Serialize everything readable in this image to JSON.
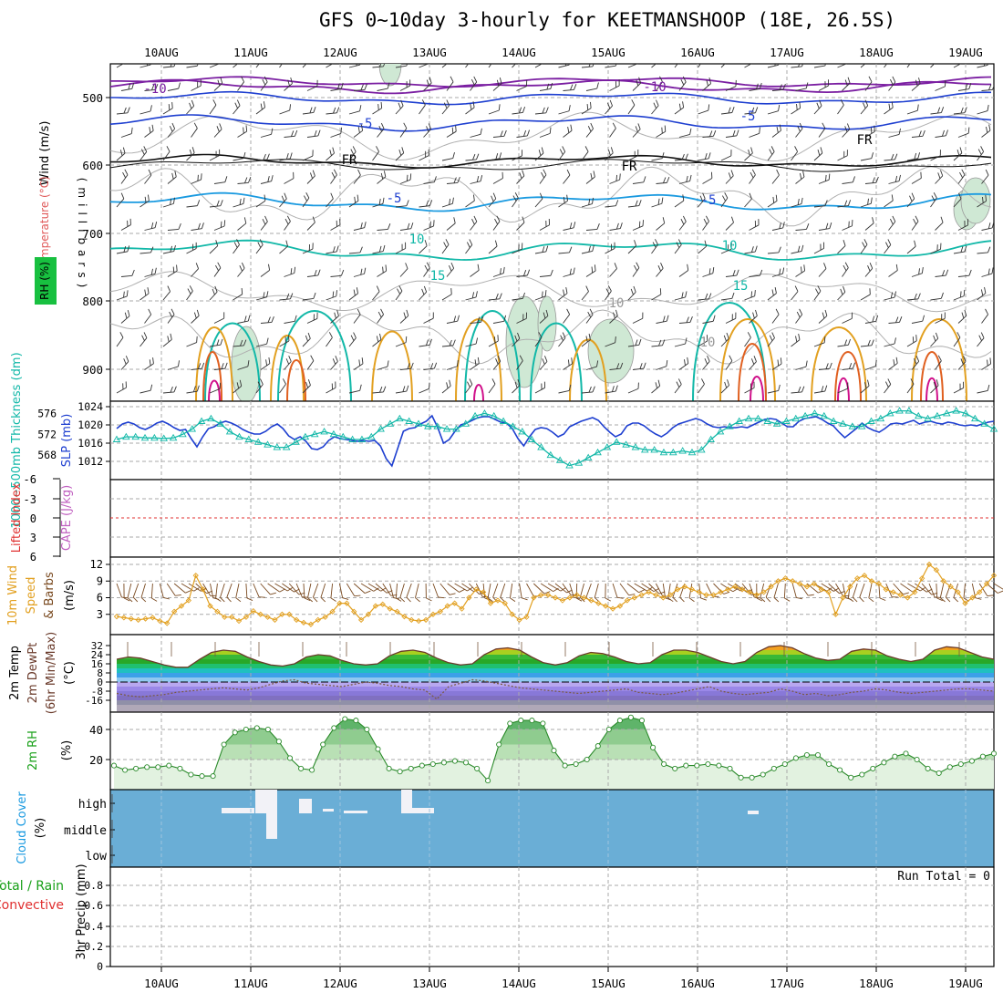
{
  "title": "GFS 0~10day 3-hourly for KEETMANSHOOP (18E, 26.5S)",
  "dates": [
    "10AUG",
    "11AUG",
    "12AUG",
    "13AUG",
    "14AUG",
    "15AUG",
    "16AUG",
    "17AUG",
    "18AUG",
    "19AUG"
  ],
  "colors": {
    "purple": "#7b1fa2",
    "blue": "#1e3fd0",
    "cyan": "#1a9ae0",
    "teal": "#12b8a8",
    "green": "#12b86a",
    "orange": "#e2a020",
    "magenta": "#d0108a",
    "ocean": "#6aaed6"
  },
  "panels": {
    "upper": {
      "ylabel_wind": "Wind (m/s)",
      "ylabel_temp": "Temperature (°C)",
      "ylabel_rh": "RH (%)",
      "ylabel_mb": "(millibars)",
      "ticks": [
        "500",
        "600",
        "700",
        "800",
        "900"
      ],
      "labels": [
        "-10",
        "-10",
        "-5",
        "-5",
        "FR",
        "FR",
        "FR",
        "-5",
        "-5",
        "10",
        "10",
        "15",
        "15",
        "10",
        "10"
      ]
    },
    "thickness": {
      "ylabel_left": "1000~500mb Thickness (dm)",
      "ylabel_right": "SLP (mb)",
      "left_ticks": [
        "576",
        "572",
        "568"
      ],
      "right_ticks": [
        "1024",
        "1020",
        "1016",
        "1012"
      ]
    },
    "cape": {
      "ylabel_left": "Lifted Index",
      "ylabel_right": "CAPE (J/kg)",
      "ticks": [
        "-6",
        "-3",
        "0",
        "3",
        "6"
      ]
    },
    "wind10m": {
      "ylabel": [
        "10m Wind",
        "Speed",
        "& Barbs"
      ],
      "unit": "(m/s)",
      "ticks": [
        "12",
        "9",
        "6",
        "3"
      ]
    },
    "temp2m": {
      "ylabel": [
        "2m Temp",
        "2m DewPt",
        "(6hr Min/Max)"
      ],
      "unit": "(°C)",
      "ticks": [
        "32",
        "24",
        "16",
        "8",
        "0",
        "-8",
        "-16"
      ]
    },
    "rh2m": {
      "ylabel": "2m RH",
      "unit": "(%)",
      "ticks": [
        "40",
        "20"
      ]
    },
    "cloud": {
      "ylabel": "Cloud Cover",
      "unit": "(%)",
      "levels": [
        "high",
        "middle",
        "low"
      ]
    },
    "precip": {
      "ylabel_total": "Total / Rain",
      "ylabel_conv": "Convective",
      "ylabel": "3hr Precip (mm)",
      "ticks": [
        "0.8",
        "0.6",
        "0.4",
        "0.2",
        "0"
      ],
      "run_total": "Run Total = 0"
    }
  },
  "chart_data": [
    {
      "type": "line",
      "name": "SLP and 1000-500mb thickness",
      "x_unit": "3-hourly steps from 10AUG 00Z",
      "series": [
        {
          "name": "SLP (mb)",
          "axis": "right",
          "values": [
            1019.2,
            1020.2,
            1020.6,
            1020.2,
            1019.4,
            1019.0,
            1019.6,
            1020.4,
            1020.8,
            1020.2,
            1019.4,
            1018.8,
            1019.0,
            1017.0,
            1015.2,
            1017.4,
            1019.2,
            1019.6,
            1020.4,
            1020.8,
            1020.4,
            1019.8,
            1019.0,
            1018.4,
            1018.0,
            1018.0,
            1018.6,
            1019.6,
            1020.2,
            1019.2,
            1017.6,
            1016.8,
            1017.4,
            1016.4,
            1014.8,
            1014.6,
            1015.2,
            1016.6,
            1017.4,
            1017.0,
            1016.8,
            1016.6,
            1016.4,
            1016.6,
            1016.4,
            1016.6,
            1015.4,
            1012.6,
            1011.0,
            1014.8,
            1018.6,
            1019.2,
            1019.4,
            1020.2,
            1020.8,
            1022.0,
            1019.4,
            1016.0,
            1016.8,
            1018.6,
            1020.0,
            1020.4,
            1021.0,
            1021.6,
            1021.8,
            1021.8,
            1021.2,
            1020.6,
            1020.4,
            1019.2,
            1017.0,
            1015.4,
            1017.4,
            1019.0,
            1019.4,
            1019.2,
            1018.4,
            1017.4,
            1018.0,
            1019.6,
            1020.2,
            1020.8,
            1021.2,
            1021.6,
            1021.0,
            1019.6,
            1018.4,
            1017.4,
            1018.0,
            1019.8,
            1020.4,
            1020.4,
            1019.8,
            1018.8,
            1018.0,
            1017.4,
            1018.2,
            1019.4,
            1020.2,
            1020.6,
            1021.0,
            1021.4,
            1021.0,
            1020.2,
            1019.6,
            1019.4,
            1019.6,
            1019.4,
            1019.4,
            1019.6,
            1019.4,
            1020.0,
            1020.6,
            1021.2,
            1021.4,
            1021.2,
            1020.4,
            1019.6,
            1019.6,
            1020.8,
            1021.4,
            1021.6,
            1021.8,
            1021.2,
            1020.4,
            1019.8,
            1018.4,
            1017.2,
            1018.2,
            1019.2,
            1020.4,
            1019.4,
            1018.8,
            1018.4,
            1019.2,
            1020.2,
            1020.4,
            1020.2,
            1020.6,
            1021.0,
            1020.2,
            1020.6,
            1020.8,
            1020.4,
            1020.2,
            1020.6,
            1020.4,
            1020.0,
            1019.8,
            1020.0,
            1019.8,
            1020.2,
            1020.6,
            1020.8
          ]
        },
        {
          "name": "Thickness (dm)",
          "axis": "left",
          "values": [
            571.0,
            571.5,
            571.5,
            571.3,
            571.3,
            571.2,
            571.3,
            572.0,
            573.0,
            574.5,
            575.0,
            574.0,
            572.5,
            571.5,
            571.0,
            570.5,
            570.0,
            569.5,
            569.5,
            570.5,
            571.5,
            572.0,
            572.5,
            572.0,
            571.5,
            571.0,
            571.0,
            571.5,
            573.0,
            574.0,
            575.0,
            574.5,
            574.0,
            573.5,
            573.5,
            573.0,
            573.0,
            574.0,
            575.5,
            576.0,
            575.5,
            574.5,
            573.5,
            572.5,
            571.0,
            569.5,
            568.0,
            567.0,
            566.0,
            566.5,
            567.5,
            568.5,
            569.5,
            570.5,
            570.0,
            569.5,
            569.0,
            569.0,
            568.5,
            568.5,
            568.8,
            568.5,
            569.0,
            571.0,
            572.5,
            573.5,
            574.5,
            575.0,
            575.0,
            574.5,
            574.0,
            574.5,
            575.0,
            575.5,
            576.0,
            575.5,
            574.5,
            574.0,
            573.5,
            573.5,
            574.5,
            575.0,
            576.0,
            576.5,
            576.5,
            575.5,
            575.0,
            575.5,
            576.0,
            576.5,
            576.0,
            575.0,
            574.0,
            573.0
          ]
        }
      ]
    },
    {
      "type": "line",
      "name": "10m wind speed",
      "unit": "m/s",
      "values": [
        2.6,
        2.4,
        2.2,
        2.0,
        2.2,
        2.4,
        1.8,
        1.4,
        3.5,
        4.5,
        5.5,
        10.0,
        7.5,
        4.5,
        3.5,
        2.5,
        2.5,
        1.8,
        2.5,
        3.6,
        3.0,
        2.5,
        2.0,
        3.0,
        3.0,
        2.0,
        1.5,
        1.2,
        2.0,
        2.5,
        3.5,
        5.0,
        5.0,
        3.5,
        2.0,
        3.0,
        4.5,
        4.8,
        4.0,
        3.5,
        2.6,
        2.0,
        1.8,
        2.0,
        3.0,
        3.5,
        4.5,
        5.0,
        4.0,
        6.0,
        7.5,
        7.0,
        5.0,
        5.5,
        5.0,
        3.0,
        2.0,
        2.5,
        6.0,
        6.5,
        6.5,
        6.0,
        5.5,
        6.0,
        6.5,
        6.0,
        5.5,
        5.0,
        4.5,
        4.0,
        4.5,
        5.5,
        6.0,
        6.5,
        7.0,
        6.5,
        6.0,
        6.5,
        7.5,
        8.0,
        7.5,
        7.0,
        6.5,
        6.5,
        7.0,
        7.5,
        8.0,
        7.5,
        7.0,
        6.5,
        7.0,
        8.0,
        9.0,
        9.5,
        9.0,
        8.5,
        8.0,
        8.5,
        7.5,
        7.0,
        3.0,
        6.0,
        8.0,
        9.5,
        10.0,
        9.0,
        8.5,
        7.5,
        7.0,
        6.5,
        6.0,
        7.0,
        9.5,
        12.0,
        11.0,
        9.0,
        8.0,
        7.0,
        5.0,
        6.0,
        7.0,
        8.5,
        10.0
      ]
    },
    {
      "type": "line",
      "name": "2m temperature and dewpoint",
      "unit": "°C",
      "series": [
        {
          "name": "Temperature",
          "values": [
            20,
            22,
            21,
            18,
            15,
            13,
            13,
            20,
            26,
            28,
            27,
            22,
            18,
            15,
            14,
            16,
            22,
            24,
            23,
            19,
            16,
            15,
            16,
            23,
            27,
            28,
            26,
            21,
            17,
            15,
            16,
            24,
            29,
            30,
            28,
            22,
            17,
            15,
            17,
            23,
            26,
            25,
            22,
            18,
            16,
            17,
            24,
            28,
            28,
            26,
            22,
            18,
            16,
            18,
            26,
            31,
            32,
            30,
            25,
            21,
            19,
            20,
            27,
            29,
            28,
            23,
            20,
            18,
            20,
            28,
            31,
            30,
            26,
            22,
            20
          ]
        },
        {
          "name": "Dew point",
          "values": [
            -10,
            -12,
            -13,
            -12,
            -11,
            -9,
            -8,
            -7,
            -6,
            -5,
            -6,
            -7,
            -5,
            -2,
            1,
            2,
            -1,
            -2,
            -3,
            -4,
            -2,
            0,
            -1,
            -3,
            -4,
            -6,
            -7,
            -15,
            -4,
            -1,
            2,
            1,
            -1,
            -3,
            -5,
            -6,
            -7,
            -8,
            -9,
            -10,
            -9,
            -8,
            -7,
            -6,
            -9,
            -10,
            -11,
            -10,
            -8,
            -6,
            -4,
            -8,
            -10,
            -11,
            -10,
            -9,
            -6,
            -8,
            -11,
            -10,
            -12,
            -11,
            -9,
            -8,
            -6,
            -7,
            -9,
            -10,
            -9,
            -8,
            -7,
            -6,
            -6,
            -7,
            -8
          ]
        }
      ]
    },
    {
      "type": "area",
      "name": "2m relative humidity",
      "unit": "%",
      "values": [
        16,
        13,
        14,
        15,
        15,
        16,
        14,
        10,
        9,
        9,
        30,
        38,
        40,
        41,
        40,
        32,
        21,
        14,
        13,
        30,
        41,
        47,
        46,
        40,
        27,
        14,
        12,
        14,
        16,
        17,
        18,
        19,
        18,
        14,
        6,
        30,
        44,
        46,
        46,
        44,
        26,
        16,
        17,
        20,
        29,
        40,
        46,
        48,
        46,
        28,
        17,
        14,
        16,
        16,
        17,
        16,
        14,
        8,
        8,
        10,
        14,
        17,
        21,
        23,
        23,
        17,
        13,
        8,
        10,
        14,
        18,
        22,
        24,
        20,
        14,
        11,
        15,
        17,
        19,
        22,
        24
      ]
    }
  ]
}
